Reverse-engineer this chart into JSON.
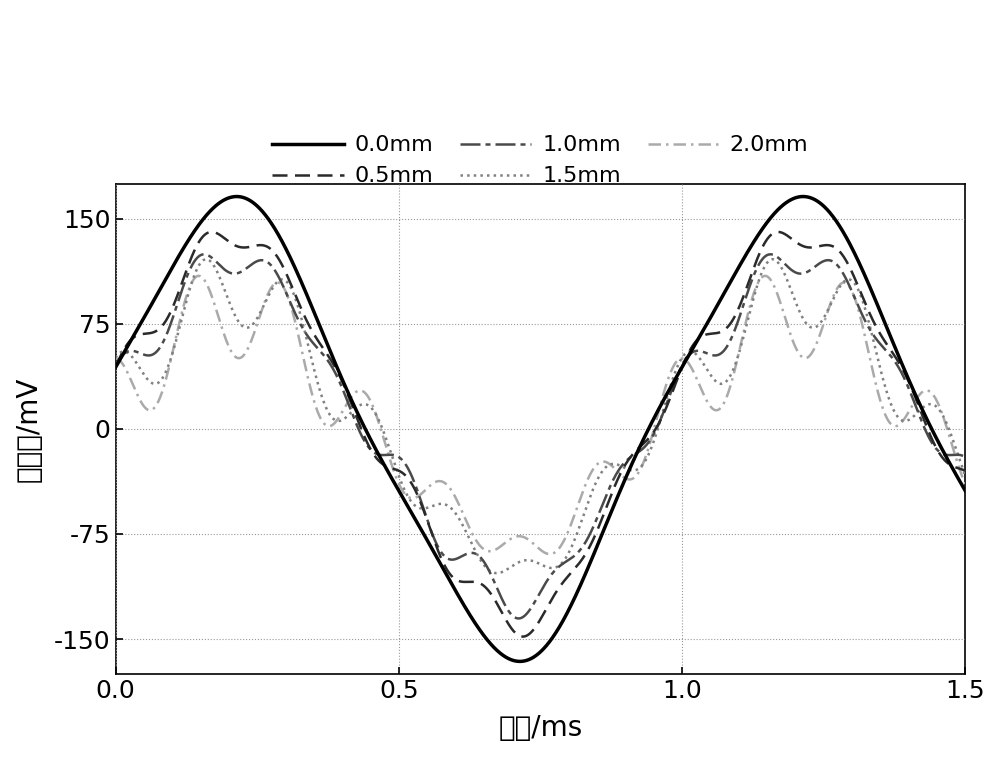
{
  "xlabel": "时间/ms",
  "ylabel": "轴电压/mV",
  "xlim": [
    0.0,
    1.5
  ],
  "ylim": [
    -175,
    175
  ],
  "yticks": [
    -150,
    -75,
    0,
    75,
    150
  ],
  "xticks": [
    0.0,
    0.5,
    1.0,
    1.5
  ],
  "background_color": "#ffffff",
  "font_size": 18,
  "legend_font_size": 16,
  "amplitudes": [
    155,
    130,
    115,
    95,
    80
  ],
  "colors": [
    "#000000",
    "#2a2a2a",
    "#4a4a4a",
    "#808080",
    "#aaaaaa"
  ],
  "line_widths": [
    2.5,
    1.8,
    1.8,
    1.8,
    1.8
  ]
}
